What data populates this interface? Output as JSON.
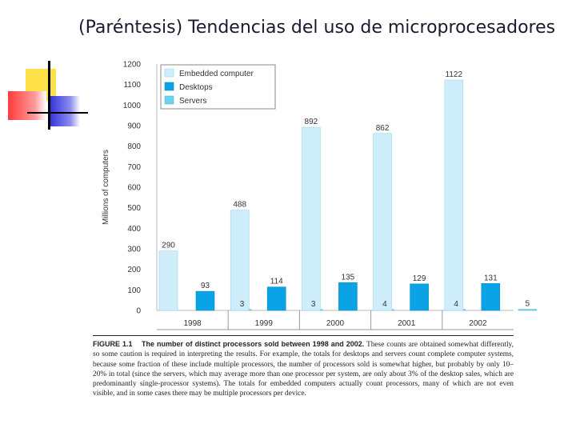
{
  "slide": {
    "title": "(Paréntesis) Tendencias del uso de microprocesadores"
  },
  "colors": {
    "embedded": "#cdeefa",
    "desktops": "#0aa3e6",
    "servers": "#6fd0f0",
    "rule": "#2a2a2a"
  },
  "chart_data": {
    "type": "bar",
    "title": "",
    "xlabel": "",
    "ylabel": "Millions of computers",
    "ylim": [
      0,
      1200
    ],
    "yticks": [
      0,
      100,
      200,
      300,
      400,
      500,
      600,
      700,
      800,
      900,
      1000,
      1100,
      1200
    ],
    "categories": [
      "1998",
      "1999",
      "2000",
      "2001",
      "2002"
    ],
    "legend_position": "top-left",
    "series": [
      {
        "name": "Embedded computer",
        "values": [
          290,
          488,
          892,
          862,
          1122
        ]
      },
      {
        "name": "Desktops",
        "values": [
          93,
          114,
          135,
          129,
          131
        ]
      },
      {
        "name": "Servers",
        "values": [
          3,
          3,
          4,
          4,
          5
        ]
      }
    ]
  },
  "caption": {
    "figure_label": "FIGURE 1.1",
    "lead": "The number of distinct processors sold between 1998 and 2002.",
    "body": "These counts are obtained somewhat differently, so some caution is required in interpreting the results. For example, the totals for desktops and servers count complete computer systems, because some fraction of these include multiple processors, the number of processors sold is somewhat higher, but probably by only 10–20% in total (since the servers, which may average more than one processor per system, are only about 3% of the desktop sales, which are predominantly single-processor systems). The totals for embedded computers actually count processors, many of which are not even visible, and in some cases there may be multiple processors per device."
  }
}
